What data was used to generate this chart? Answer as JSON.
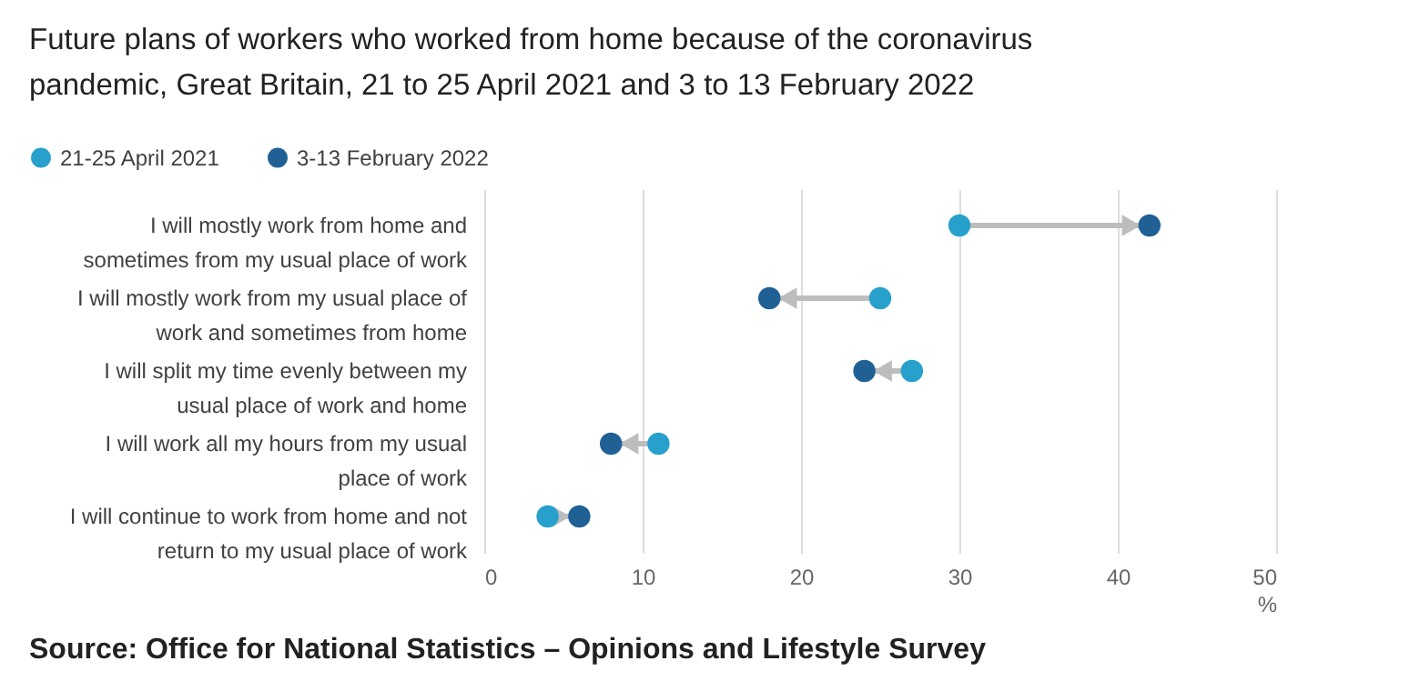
{
  "chart_data": {
    "type": "scatter",
    "orientation": "horizontal",
    "title": "Future plans of workers who worked from home because of the coronavirus pandemic, Great Britain, 21 to 25 April 2021 and 3 to 13 February 2022",
    "xlabel": "%",
    "categories": [
      "I will mostly work from home and sometimes from my usual place of work",
      "I will mostly work from my usual place of work and sometimes from home",
      "I will split my time evenly between my usual place of work and home",
      "I will work all my hours from my usual place of work",
      "I will continue to work from home and not return to my usual place of work"
    ],
    "series": [
      {
        "name": "21-25 April 2021",
        "color": "#27a0cc",
        "values": [
          30,
          25,
          27,
          11,
          4
        ]
      },
      {
        "name": "3-13 February 2022",
        "color": "#206095",
        "values": [
          42,
          18,
          24,
          8,
          6
        ]
      }
    ],
    "xlim": [
      0,
      50
    ],
    "xticks": [
      0,
      10,
      20,
      30,
      40,
      50
    ],
    "grid": "x",
    "legend": "top left",
    "marker": "circle",
    "annotations": [
      "Source: Office for National Statistics – Opinions and Lifestyle Survey"
    ]
  }
}
